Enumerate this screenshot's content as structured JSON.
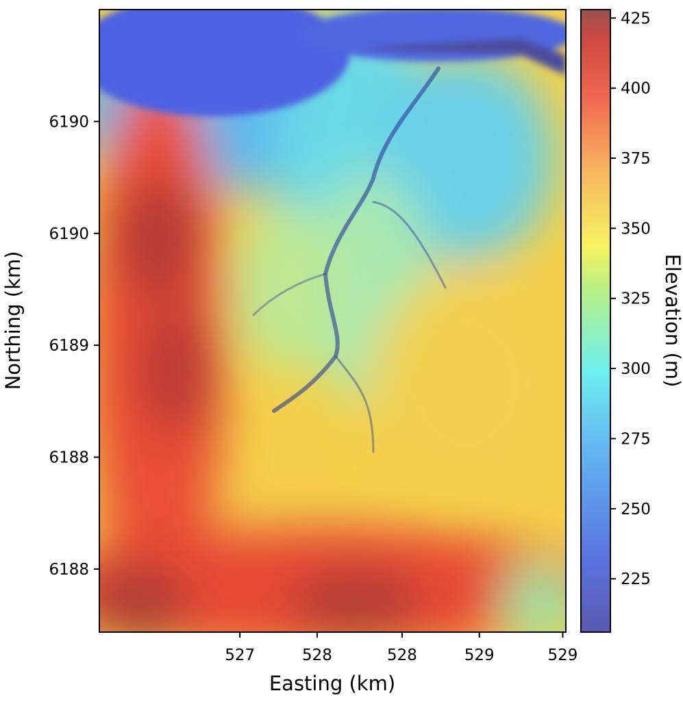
{
  "chart_data": {
    "type": "heatmap",
    "title": "",
    "xlabel": "Easting (km)",
    "ylabel": "Northing (km)",
    "colorbar_label": "Elevation (m)",
    "xlim": [
      526.07,
      529.09
    ],
    "ylim": [
      6187.69,
      6190.75
    ],
    "x_ticks": [
      {
        "value": 526.98,
        "label": "527"
      },
      {
        "value": 527.48,
        "label": "528"
      },
      {
        "value": 528.03,
        "label": "528"
      },
      {
        "value": 528.53,
        "label": "529"
      },
      {
        "value": 529.07,
        "label": "529"
      }
    ],
    "y_ticks": [
      {
        "value": 6188.0,
        "label": "6188"
      },
      {
        "value": 6188.55,
        "label": "6188"
      },
      {
        "value": 6189.1,
        "label": "6189"
      },
      {
        "value": 6189.65,
        "label": "6190"
      },
      {
        "value": 6190.2,
        "label": "6190"
      }
    ],
    "colorbar": {
      "min": 206,
      "max": 428,
      "ticks": [
        225,
        250,
        275,
        300,
        325,
        350,
        375,
        400,
        425
      ],
      "colormap": "jet",
      "alpha": 0.7
    },
    "grid": false,
    "colormap_stops": [
      "#2c2ca8",
      "#3c5ce8",
      "#40b8f0",
      "#5ce8d8",
      "#c8f070",
      "#f8f050",
      "#f8b040",
      "#f05838",
      "#c83228",
      "#8e3a3a"
    ]
  }
}
